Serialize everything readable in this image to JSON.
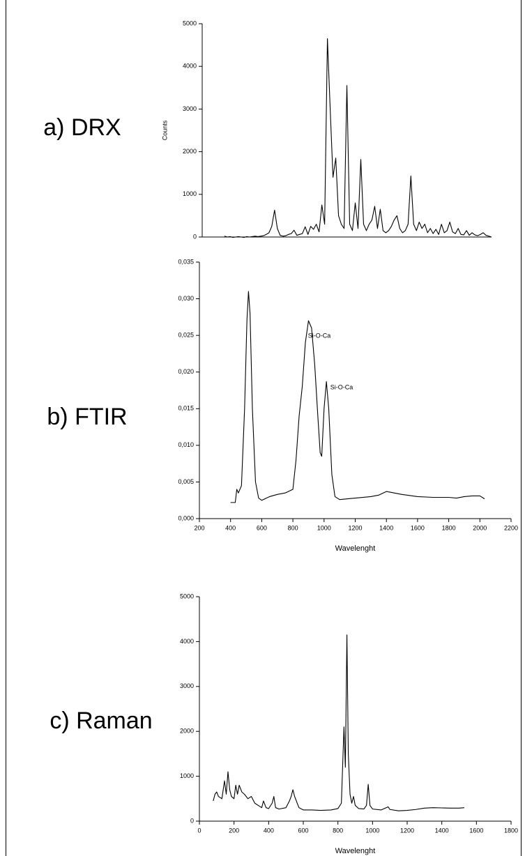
{
  "chart_data": [
    {
      "type": "line",
      "panel_label": "a) DRX",
      "ylabel": "Counts",
      "color": "#000000",
      "ylim": [
        0,
        5000
      ],
      "yticks": [
        0,
        1000,
        2000,
        3000,
        4000,
        5000
      ],
      "values": [
        20,
        0,
        10,
        -10,
        0,
        10,
        0,
        -10,
        10,
        0,
        10,
        20,
        10,
        20,
        30,
        60,
        100,
        250,
        630,
        200,
        40,
        20,
        30,
        60,
        80,
        160,
        40,
        60,
        80,
        240,
        60,
        250,
        180,
        300,
        120,
        750,
        300,
        4650,
        3000,
        1400,
        1850,
        500,
        300,
        200,
        3550,
        300,
        150,
        800,
        200,
        1820,
        300,
        150,
        300,
        400,
        720,
        200,
        650,
        150,
        100,
        150,
        250,
        400,
        500,
        200,
        100,
        150,
        300,
        1430,
        300,
        150,
        350,
        200,
        300,
        100,
        200,
        80,
        180,
        60,
        300,
        100,
        150,
        350,
        120,
        80,
        200,
        60,
        50,
        150,
        40,
        100,
        50,
        30,
        60,
        100,
        40,
        20,
        0
      ]
    },
    {
      "type": "line",
      "panel_label": "b) FTIR",
      "xlabel": "Wavelenght",
      "color": "#000000",
      "annotations": [
        "Si-O-Ca",
        "Si-O-Ca"
      ],
      "xlim": [
        200,
        2200
      ],
      "xticks": [
        200,
        400,
        600,
        800,
        1000,
        1200,
        1400,
        1600,
        1800,
        2000,
        2200
      ],
      "ylim": [
        0,
        0.035
      ],
      "yticks": [
        {
          "value": 0,
          "label": "0,000"
        },
        {
          "value": 0.005,
          "label": "0,005"
        },
        {
          "value": 0.01,
          "label": "0,010"
        },
        {
          "value": 0.015,
          "label": "0,015"
        },
        {
          "value": 0.02,
          "label": "0,020"
        },
        {
          "value": 0.025,
          "label": "0,025"
        },
        {
          "value": 0.03,
          "label": "0,030"
        },
        {
          "value": 0.035,
          "label": "0,035"
        }
      ],
      "x": [
        400,
        430,
        440,
        450,
        470,
        490,
        505,
        515,
        525,
        540,
        560,
        580,
        600,
        650,
        700,
        750,
        800,
        820,
        840,
        860,
        880,
        900,
        920,
        940,
        960,
        975,
        985,
        1000,
        1015,
        1030,
        1050,
        1070,
        1100,
        1200,
        1300,
        1350,
        1400,
        1450,
        1500,
        1600,
        1700,
        1800,
        1850,
        1900,
        1950,
        2000,
        2030
      ],
      "values": [
        0.0022,
        0.0022,
        0.004,
        0.0035,
        0.0045,
        0.015,
        0.027,
        0.031,
        0.028,
        0.015,
        0.005,
        0.0028,
        0.0025,
        0.003,
        0.0033,
        0.0035,
        0.004,
        0.008,
        0.014,
        0.018,
        0.024,
        0.027,
        0.026,
        0.021,
        0.014,
        0.009,
        0.0085,
        0.015,
        0.0187,
        0.015,
        0.006,
        0.003,
        0.0026,
        0.0028,
        0.003,
        0.0032,
        0.0037,
        0.0035,
        0.0033,
        0.003,
        0.0029,
        0.0029,
        0.0028,
        0.003,
        0.0031,
        0.0031,
        0.0027
      ]
    },
    {
      "type": "line",
      "panel_label": "c) Raman",
      "xlabel": "Wavelenght",
      "color": "#000000",
      "xlim": [
        0,
        1800
      ],
      "xticks": [
        0,
        200,
        400,
        600,
        800,
        1000,
        1200,
        1400,
        1600,
        1800
      ],
      "ylim": [
        0,
        5000
      ],
      "yticks": [
        0,
        1000,
        2000,
        3000,
        4000,
        5000
      ],
      "x": [
        80,
        90,
        100,
        110,
        130,
        145,
        155,
        165,
        175,
        185,
        200,
        210,
        220,
        230,
        245,
        260,
        280,
        300,
        320,
        340,
        360,
        370,
        385,
        400,
        420,
        430,
        440,
        460,
        500,
        520,
        530,
        540,
        550,
        560,
        575,
        600,
        650,
        700,
        760,
        800,
        820,
        835,
        843,
        852,
        860,
        870,
        880,
        890,
        900,
        920,
        950,
        965,
        975,
        985,
        1000,
        1050,
        1080,
        1090,
        1100,
        1150,
        1200,
        1250,
        1300,
        1350,
        1400,
        1450,
        1500,
        1530
      ],
      "values": [
        450,
        600,
        650,
        550,
        500,
        900,
        600,
        1100,
        700,
        550,
        500,
        800,
        600,
        800,
        650,
        600,
        500,
        550,
        400,
        350,
        300,
        450,
        300,
        280,
        400,
        550,
        300,
        270,
        300,
        450,
        550,
        700,
        550,
        450,
        300,
        250,
        250,
        240,
        250,
        280,
        400,
        2100,
        1200,
        4150,
        1500,
        600,
        400,
        550,
        350,
        280,
        270,
        350,
        820,
        350,
        270,
        250,
        300,
        320,
        260,
        230,
        240,
        260,
        290,
        300,
        295,
        290,
        290,
        300
      ]
    }
  ]
}
